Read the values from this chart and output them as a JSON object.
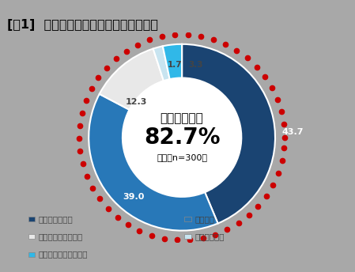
{
  "title": "[図1]  日本の気候・環境が変化している",
  "values": [
    43.7,
    39.0,
    12.3,
    1.7,
    3.3
  ],
  "colors": [
    "#1a4472",
    "#2878b8",
    "#e8e8e8",
    "#c8e4f0",
    "#30b8e8"
  ],
  "center_text1": "変化している",
  "center_text2": "82.7%",
  "center_text3": "全体（n=300）",
  "bg_color": "#a8a8a8",
  "dotted_circle_color": "#cc0000",
  "label_values": [
    "43.7",
    "39.0",
    "12.3",
    "1.7",
    "3.3"
  ],
  "legend_labels": [
    "とてもそう思う",
    "そう思う",
    "どちらともいえない",
    "そう思わない",
    "まったくそう思わない"
  ],
  "legend_colors": [
    "#1a4472",
    "#2878b8",
    "#e8e8e8",
    "#c8e4f0",
    "#30b8e8"
  ]
}
